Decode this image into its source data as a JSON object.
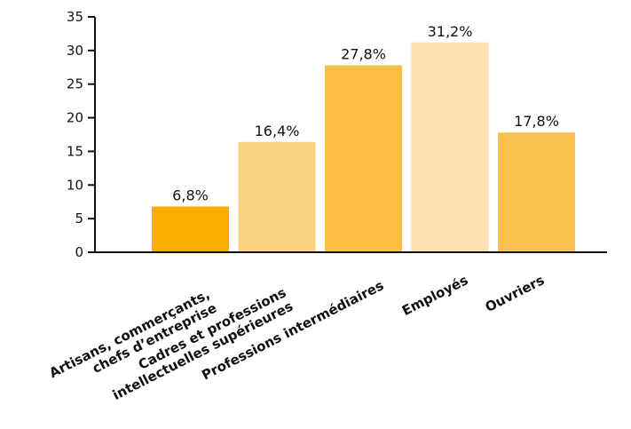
{
  "chart_data": {
    "type": "bar",
    "title": "",
    "xlabel": "",
    "ylabel": "",
    "ylim": [
      0,
      35
    ],
    "yticks": [
      "0",
      "5",
      "10",
      "15",
      "20",
      "25",
      "30",
      "35"
    ],
    "grid": false,
    "categories": [
      [
        "Artisans, commerçants,",
        "chefs d’entreprise"
      ],
      [
        "Cadres et professions",
        "intellectuelles supérieures"
      ],
      [
        "Professions intermédiaires"
      ],
      [
        "Employés"
      ],
      [
        "Ouvriers"
      ]
    ],
    "values": [
      6.8,
      16.4,
      27.8,
      31.2,
      17.8
    ],
    "value_labels": [
      "6,8%",
      "16,4%",
      "27,8%",
      "31,2%",
      "17,8%"
    ],
    "colors": [
      "#f8ae00",
      "#fcd283",
      "#fcbf45",
      "#fde2b1",
      "#fcc24e"
    ]
  }
}
